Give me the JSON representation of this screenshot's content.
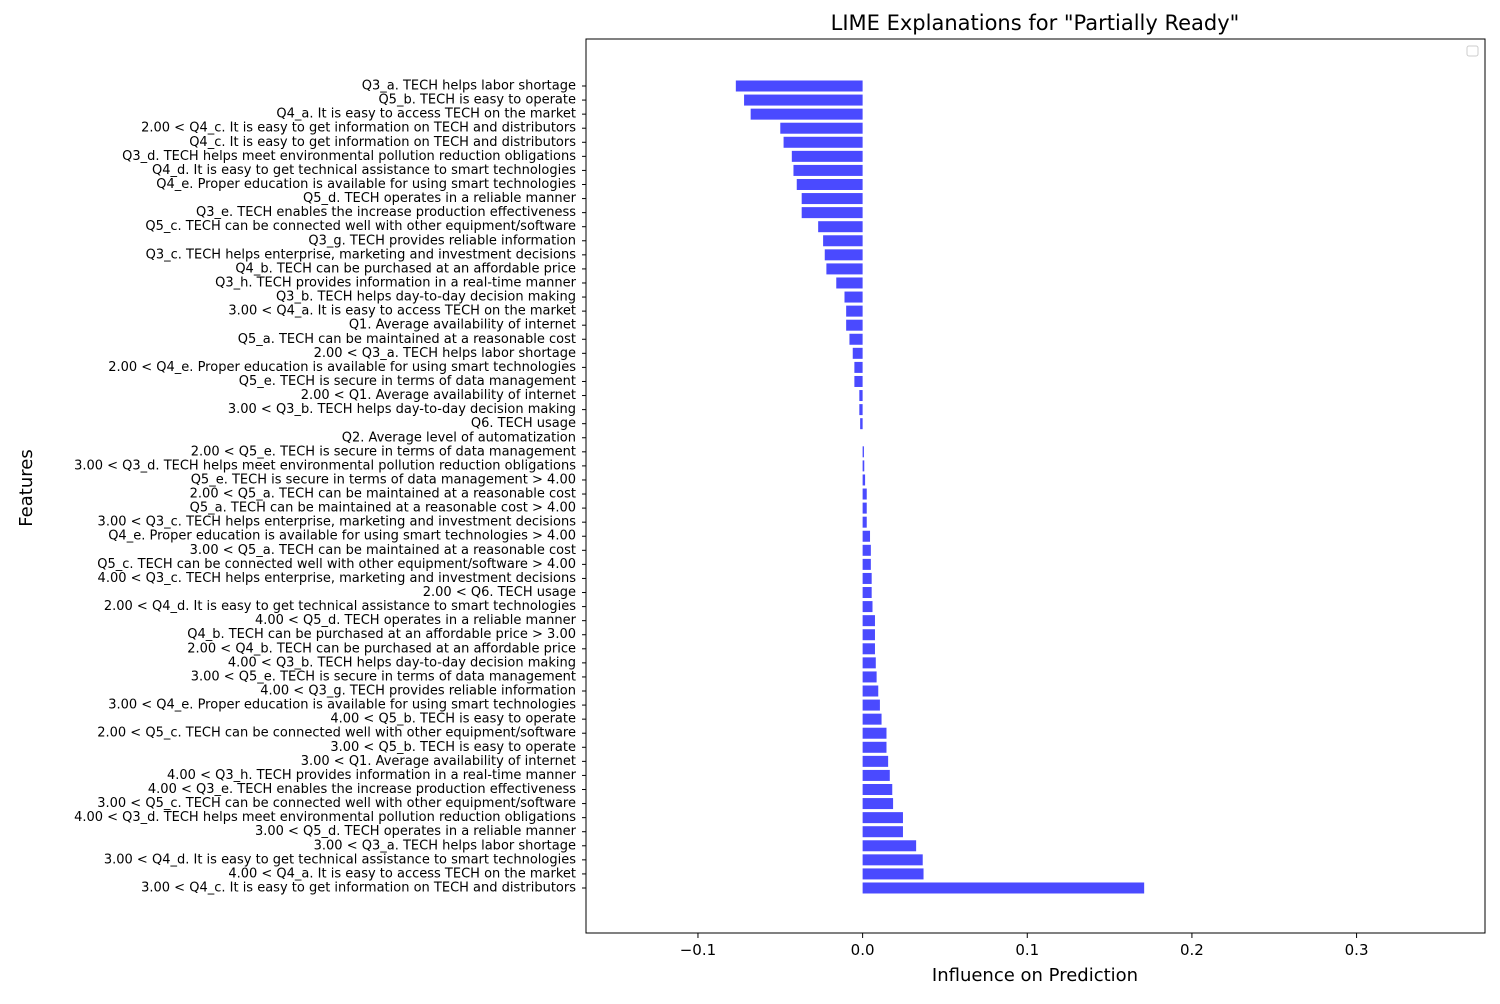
{
  "chart_data": {
    "type": "bar",
    "orientation": "horizontal",
    "title": "LIME Explanations for \"Partially Ready\"",
    "xlabel": "Influence on Prediction",
    "ylabel": "Features",
    "xlim": [
      -0.168,
      0.378
    ],
    "xticks": [
      -0.1,
      0.0,
      0.1,
      0.2,
      0.3
    ],
    "xtick_labels": [
      "−0.1",
      "0.0",
      "0.1",
      "0.2",
      "0.3"
    ],
    "bar_color": "#4a4aff",
    "legend": "top-right (empty)",
    "grid": false,
    "categories": [
      "Q3_a. TECH helps labor shortage",
      "Q5_b. TECH is easy to operate",
      "Q4_a. It is easy to access TECH on the market",
      "2.00 < Q4_c. It is easy to get information on TECH and distributors",
      "Q4_c. It is easy to get information on TECH and distributors",
      "Q3_d. TECH helps meet environmental pollution reduction obligations",
      "Q4_d. It is easy to get technical assistance to smart technologies",
      "Q4_e. Proper education is available for using smart technologies",
      "Q5_d. TECH operates in a reliable manner",
      "Q3_e. TECH enables the increase production effectiveness",
      "Q5_c. TECH can be connected well with other equipment/software",
      "Q3_g. TECH provides reliable information",
      "Q3_c. TECH helps enterprise, marketing and investment decisions",
      "Q4_b. TECH can be purchased at an affordable price",
      "Q3_h. TECH provides information in a real-time manner",
      "Q3_b. TECH helps day-to-day decision making",
      "3.00 < Q4_a. It is easy to access TECH on the market",
      "Q1. Average availability of internet",
      "Q5_a. TECH can be maintained at a reasonable cost",
      "2.00 < Q3_a. TECH helps labor shortage",
      "2.00 < Q4_e. Proper education is available for using smart technologies",
      "Q5_e. TECH is secure in terms of data management",
      "2.00 < Q1. Average availability of internet",
      "3.00 < Q3_b. TECH helps day-to-day decision making",
      "Q6. TECH usage",
      "Q2. Average level of automatization",
      "2.00 < Q5_e. TECH is secure in terms of data management",
      "3.00 < Q3_d. TECH helps meet environmental pollution reduction obligations",
      "Q5_e. TECH is secure in terms of data management > 4.00",
      "2.00 < Q5_a. TECH can be maintained at a reasonable cost",
      "Q5_a. TECH can be maintained at a reasonable cost > 4.00",
      "3.00 < Q3_c. TECH helps enterprise, marketing and investment decisions",
      "Q4_e. Proper education is available for using smart technologies > 4.00",
      "3.00 < Q5_a. TECH can be maintained at a reasonable cost",
      "Q5_c. TECH can be connected well with other equipment/software > 4.00",
      "4.00 < Q3_c. TECH helps enterprise, marketing and investment decisions",
      "2.00 < Q6. TECH usage",
      "2.00 < Q4_d. It is easy to get technical assistance to smart technologies",
      "4.00 < Q5_d. TECH operates in a reliable manner",
      "Q4_b. TECH can be purchased at an affordable price > 3.00",
      "2.00 < Q4_b. TECH can be purchased at an affordable price",
      "4.00 < Q3_b. TECH helps day-to-day decision making",
      "3.00 < Q5_e. TECH is secure in terms of data management",
      "4.00 < Q3_g. TECH provides reliable information",
      "3.00 < Q4_e. Proper education is available for using smart technologies",
      "4.00 < Q5_b. TECH is easy to operate",
      "2.00 < Q5_c. TECH can be connected well with other equipment/software",
      "3.00 < Q5_b. TECH is easy to operate",
      "3.00 < Q1. Average availability of internet",
      "4.00 < Q3_h. TECH provides information in a real-time manner",
      "4.00 < Q3_e. TECH enables the increase production effectiveness",
      "3.00 < Q5_c. TECH can be connected well with other equipment/software",
      "4.00 < Q3_d. TECH helps meet environmental pollution reduction obligations",
      "3.00 < Q5_d. TECH operates in a reliable manner",
      "3.00 < Q3_a. TECH helps labor shortage",
      "3.00 < Q4_d. It is easy to get technical assistance to smart technologies",
      "4.00 < Q4_a. It is easy to access TECH on the market",
      "3.00 < Q4_c. It is easy to get information on TECH and distributors"
    ],
    "values": [
      -0.077,
      -0.072,
      -0.068,
      -0.05,
      -0.048,
      -0.043,
      -0.042,
      -0.04,
      -0.037,
      -0.037,
      -0.027,
      -0.024,
      -0.023,
      -0.022,
      -0.016,
      -0.011,
      -0.01,
      -0.01,
      -0.008,
      -0.006,
      -0.005,
      -0.005,
      -0.002,
      -0.002,
      -0.0015,
      0.0,
      0.0008,
      0.001,
      0.0015,
      0.0025,
      0.0025,
      0.0025,
      0.0045,
      0.005,
      0.005,
      0.0055,
      0.0055,
      0.006,
      0.0075,
      0.0075,
      0.0075,
      0.008,
      0.0085,
      0.0095,
      0.0105,
      0.0115,
      0.0145,
      0.0145,
      0.0155,
      0.0165,
      0.018,
      0.0185,
      0.0245,
      0.0245,
      0.0325,
      0.0365,
      0.037,
      0.171
    ]
  }
}
